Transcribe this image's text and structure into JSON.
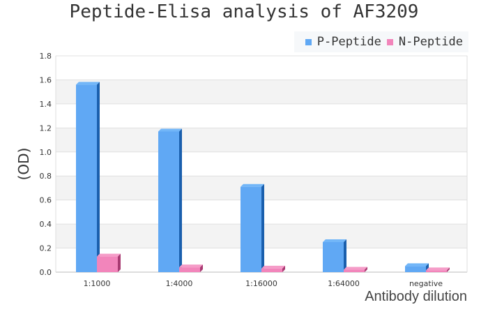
{
  "chart_data": {
    "type": "bar",
    "title": "Peptide-Elisa analysis of AF3209",
    "xlabel": "Antibody dilution",
    "ylabel": "(OD)",
    "categories": [
      "1:1000",
      "1:4000",
      "1:16000",
      "1:64000",
      "negative"
    ],
    "series": [
      {
        "name": "P-Peptide",
        "color": "#60a8f4",
        "values": [
          1.56,
          1.17,
          0.71,
          0.25,
          0.05
        ]
      },
      {
        "name": "N-Peptide",
        "color": "#f285bb",
        "values": [
          0.13,
          0.04,
          0.03,
          0.02,
          0.015
        ]
      }
    ],
    "ylim": [
      0,
      1.8
    ],
    "yticks": [
      "0.0",
      "0.2",
      "0.4",
      "0.6",
      "0.8",
      "1.0",
      "1.2",
      "1.4",
      "1.6",
      "1.8"
    ],
    "grid": true,
    "legend": "top-right"
  }
}
